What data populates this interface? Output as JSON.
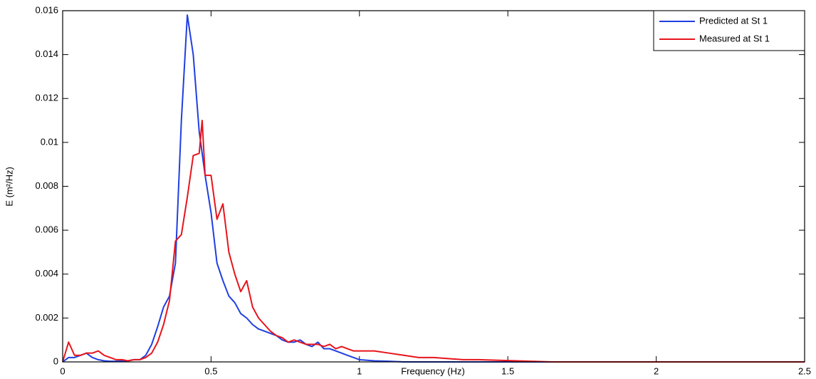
{
  "chart_data": {
    "type": "line",
    "xlabel": "Frequency (Hz)",
    "ylabel": "E (m²/Hz)",
    "x": [
      0,
      0.02,
      0.04,
      0.06,
      0.08,
      0.1,
      0.12,
      0.14,
      0.16,
      0.18,
      0.2,
      0.22,
      0.24,
      0.26,
      0.28,
      0.3,
      0.32,
      0.34,
      0.36,
      0.38,
      0.4,
      0.42,
      0.44,
      0.46,
      0.47,
      0.48,
      0.5,
      0.52,
      0.54,
      0.56,
      0.58,
      0.6,
      0.62,
      0.64,
      0.66,
      0.68,
      0.7,
      0.72,
      0.74,
      0.76,
      0.78,
      0.8,
      0.82,
      0.84,
      0.86,
      0.88,
      0.9,
      0.92,
      0.94,
      0.96,
      0.98,
      1,
      1.05,
      1.1,
      1.15,
      1.2,
      1.25,
      1.3,
      1.35,
      1.4,
      1.45,
      1.5,
      1.55,
      1.6,
      1.65,
      1.7,
      1.75,
      1.8,
      1.85,
      1.9,
      1.95,
      2,
      2.05,
      2.1,
      2.15,
      2.2,
      2.25,
      2.3,
      2.35,
      2.4,
      2.45,
      2.5
    ],
    "series": [
      {
        "name": "Predicted at St 1",
        "color": "#1f3fe0",
        "values": [
          0,
          0.0002,
          0.0002,
          0.0003,
          0.0004,
          0.0002,
          0.0001,
          5e-05,
          3e-05,
          3e-05,
          5e-05,
          5e-05,
          0.0001,
          0.0001,
          0.0003,
          0.0008,
          0.0016,
          0.0025,
          0.003,
          0.0045,
          0.011,
          0.0158,
          0.014,
          0.0105,
          0.0095,
          0.0085,
          0.0068,
          0.0045,
          0.0037,
          0.003,
          0.0027,
          0.0022,
          0.002,
          0.0017,
          0.0015,
          0.0014,
          0.0013,
          0.0012,
          0.001,
          0.0009,
          0.0009,
          0.001,
          0.0008,
          0.0007,
          0.0009,
          0.0006,
          0.0006,
          0.0005,
          0.0004,
          0.0003,
          0.0002,
          0.0001,
          5e-05,
          3e-05,
          0,
          0,
          0,
          0,
          0,
          0,
          0,
          0,
          0,
          0,
          0,
          0,
          0,
          0,
          0,
          0,
          0,
          0,
          0,
          0,
          0,
          0,
          0,
          0,
          0,
          0,
          0,
          0
        ]
      },
      {
        "name": "Measured at St 1",
        "color": "#e8141c",
        "values": [
          0,
          0.0009,
          0.0003,
          0.0003,
          0.0004,
          0.0004,
          0.0005,
          0.0003,
          0.0002,
          0.0001,
          0.0001,
          5e-05,
          0.0001,
          0.0001,
          0.0002,
          0.0004,
          0.0009,
          0.0017,
          0.0028,
          0.0055,
          0.0058,
          0.0075,
          0.0094,
          0.0095,
          0.011,
          0.0085,
          0.0085,
          0.0065,
          0.0072,
          0.005,
          0.004,
          0.0032,
          0.0037,
          0.0025,
          0.002,
          0.0017,
          0.0014,
          0.0012,
          0.0011,
          0.0009,
          0.001,
          0.0009,
          0.0008,
          0.0008,
          0.0008,
          0.0007,
          0.0008,
          0.0006,
          0.0007,
          0.0006,
          0.0005,
          0.0005,
          0.0005,
          0.0004,
          0.0003,
          0.0002,
          0.0002,
          0.00015,
          0.0001,
          0.0001,
          8e-05,
          6e-05,
          4e-05,
          2e-05,
          0,
          0,
          0,
          0,
          0,
          0,
          0,
          0,
          0,
          0,
          0,
          0,
          0,
          0,
          0,
          0,
          0,
          0
        ]
      }
    ],
    "xlim": [
      0,
      2.5
    ],
    "xticks": [
      0,
      0.5,
      1,
      1.5,
      2,
      2.5
    ],
    "ylim": [
      0,
      0.016
    ],
    "yticks": [
      0,
      0.002,
      0.004,
      0.006,
      0.008,
      0.01,
      0.012,
      0.014,
      0.016
    ],
    "grid": false,
    "legend": "upper right"
  }
}
